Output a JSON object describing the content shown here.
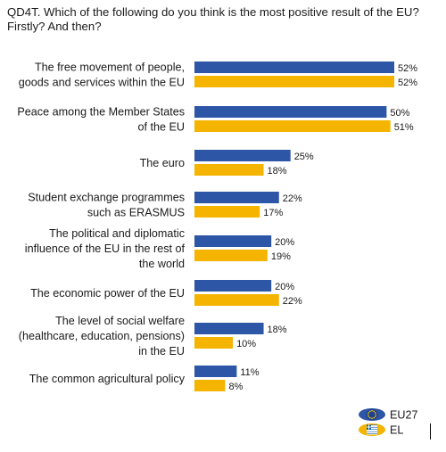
{
  "colors": {
    "eu27": "#2e56a6",
    "el": "#f5b400"
  },
  "icons": {
    "eu27": "eu-flag-icon",
    "el": "greece-flag-icon"
  },
  "chart_data": {
    "type": "bar",
    "orientation": "horizontal",
    "title": "QD4T. Which of the following do you think is the most positive result of the EU? Firstly? And then?",
    "categories": [
      [
        "The free movement of people,",
        "goods and services within the EU"
      ],
      [
        "Peace among the Member States",
        "of the EU"
      ],
      [
        "The euro"
      ],
      [
        "Student exchange programmes",
        "such as ERASMUS"
      ],
      [
        "The political and diplomatic",
        "influence of the EU in the rest of",
        "the world"
      ],
      [
        "The economic power of the EU"
      ],
      [
        "The level of social welfare",
        "(healthcare, education, pensions)",
        "in the EU"
      ],
      [
        "The common agricultural policy"
      ]
    ],
    "series": [
      {
        "name": "EU27",
        "values": [
          52,
          50,
          25,
          22,
          20,
          20,
          18,
          11
        ],
        "labels": [
          "52%",
          "50%",
          "25%",
          "22%",
          "20%",
          "20%",
          "18%",
          "11%"
        ]
      },
      {
        "name": "EL",
        "values": [
          52,
          51,
          18,
          17,
          19,
          22,
          10,
          8
        ],
        "labels": [
          "52%",
          "51%",
          "18%",
          "17%",
          "19%",
          "22%",
          "10%",
          "8%"
        ]
      }
    ],
    "xlim": [
      0,
      52
    ],
    "grid": false,
    "legend_position": "bottom-right"
  }
}
